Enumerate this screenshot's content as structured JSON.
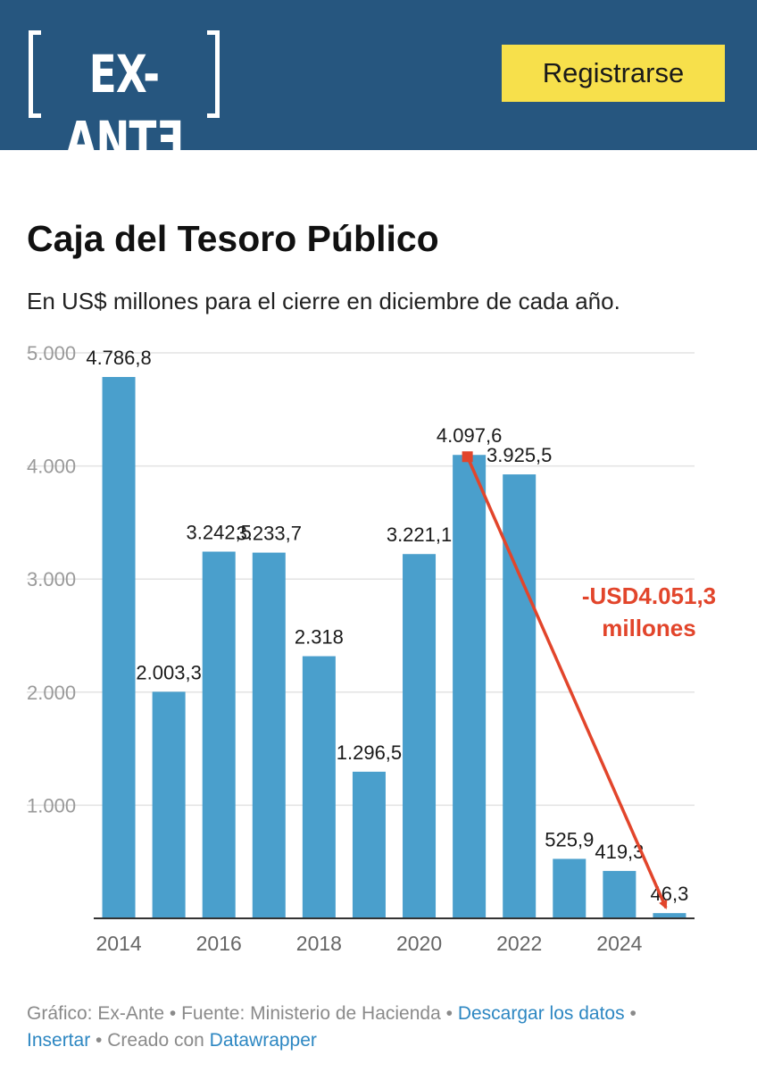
{
  "header": {
    "logo_text": "[EX-ANTE]",
    "logo_inner": "EX-ANTƎ",
    "register_label": "Registrarse"
  },
  "chart_data": {
    "type": "bar",
    "title": "Caja del Tesoro Público",
    "subtitle": "En US$ millones para el cierre en diciembre de cada año.",
    "categories": [
      "2014",
      "2015",
      "2016",
      "2017",
      "2018",
      "2019",
      "2020",
      "2021",
      "2022",
      "2023",
      "2024",
      "2025"
    ],
    "values": [
      4786.8,
      2003.3,
      3242.5,
      3233.7,
      2318,
      1296.5,
      3221.1,
      4097.6,
      3925.5,
      525.9,
      419.3,
      46.3
    ],
    "value_labels": [
      "4.786,8",
      "2.003,3",
      "3.242,5",
      "3.233,7",
      "2.318",
      "1.296,5",
      "3.221,1",
      "4.097,6",
      "3.925,5",
      "525,9",
      "419,3",
      "46,3"
    ],
    "x_tick_labels": [
      "2014",
      "2016",
      "2018",
      "2020",
      "2022",
      "2024"
    ],
    "y_ticks": [
      1000,
      2000,
      3000,
      4000,
      5000
    ],
    "y_tick_labels": [
      "1.000",
      "2.000",
      "3.000",
      "4.000",
      "5.000"
    ],
    "ylim": [
      0,
      5000
    ],
    "grid": true,
    "bar_color": "#4a9fcc",
    "annotation": {
      "line1": "-USD4.051,3",
      "line2": "millones",
      "color": "#e2452b",
      "from_category": "2021",
      "to_category": "2025"
    }
  },
  "footer": {
    "grafico_label": "Gráfico: Ex-Ante",
    "fuente_label": "Fuente: Ministerio de Hacienda",
    "download_link": "Descargar los datos",
    "embed_link": "Insertar",
    "creado_label": "Creado con",
    "datawrapper_link": "Datawrapper",
    "separator": "•"
  }
}
